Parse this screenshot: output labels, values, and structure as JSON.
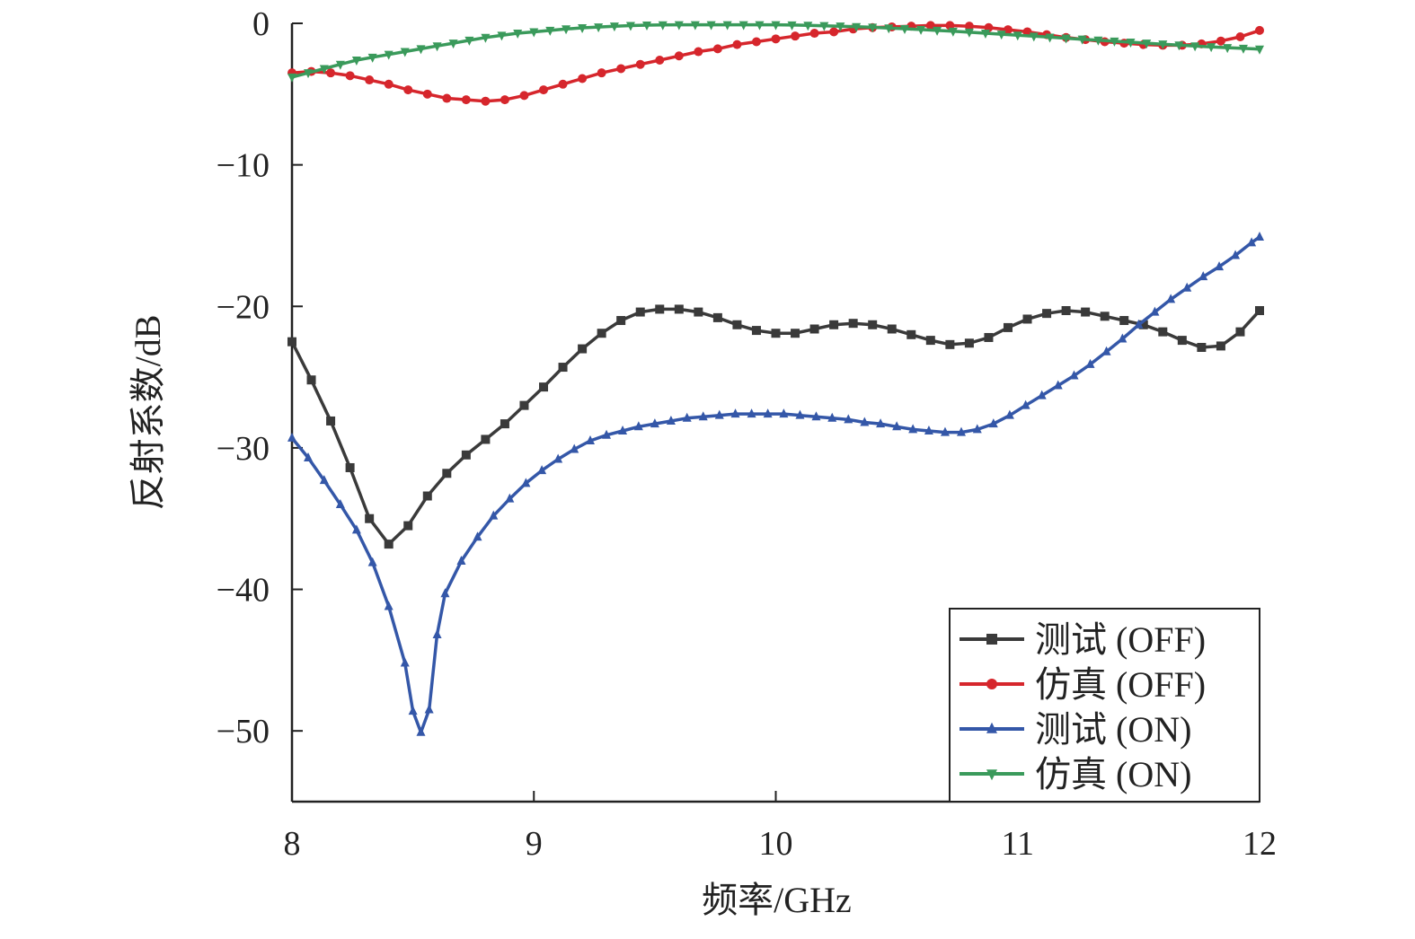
{
  "chart_data": {
    "type": "line",
    "xlabel": "频率/GHz",
    "ylabel": "反射系数/dB",
    "xlim": [
      8,
      12
    ],
    "ylim": [
      -55,
      0
    ],
    "x_ticks": [
      8,
      9,
      10,
      11,
      12
    ],
    "y_ticks": [
      0,
      -10,
      -20,
      -30,
      -40,
      -50
    ],
    "x_tick_labels": [
      "8",
      "9",
      "10",
      "11",
      "12"
    ],
    "y_tick_labels": [
      "0",
      "−10",
      "−20",
      "−30",
      "−40",
      "−50"
    ],
    "grid": false,
    "legend_position": "bottom-right",
    "series": [
      {
        "name": "测试 (OFF)",
        "color": "#3a3a3a",
        "marker": "square",
        "x": [
          8.0,
          8.08,
          8.16,
          8.24,
          8.32,
          8.4,
          8.48,
          8.56,
          8.64,
          8.72,
          8.8,
          8.88,
          8.96,
          9.04,
          9.12,
          9.2,
          9.28,
          9.36,
          9.44,
          9.52,
          9.6,
          9.68,
          9.76,
          9.84,
          9.92,
          10.0,
          10.08,
          10.16,
          10.24,
          10.32,
          10.4,
          10.48,
          10.56,
          10.64,
          10.72,
          10.8,
          10.88,
          10.96,
          11.04,
          11.12,
          11.2,
          11.28,
          11.36,
          11.44,
          11.52,
          11.6,
          11.68,
          11.76,
          11.84,
          11.92,
          12.0
        ],
        "y": [
          -22.5,
          -25.2,
          -28.1,
          -31.4,
          -35.0,
          -36.8,
          -35.5,
          -33.4,
          -31.8,
          -30.5,
          -29.4,
          -28.3,
          -27.0,
          -25.7,
          -24.3,
          -23.0,
          -21.9,
          -21.0,
          -20.4,
          -20.2,
          -20.2,
          -20.4,
          -20.8,
          -21.3,
          -21.7,
          -21.9,
          -21.9,
          -21.6,
          -21.3,
          -21.2,
          -21.3,
          -21.6,
          -22.0,
          -22.4,
          -22.7,
          -22.6,
          -22.2,
          -21.5,
          -20.9,
          -20.5,
          -20.3,
          -20.4,
          -20.7,
          -21.0,
          -21.3,
          -21.8,
          -22.4,
          -22.9,
          -22.8,
          -21.8,
          -20.3
        ]
      },
      {
        "name": "仿真 (OFF)",
        "color": "#d6262c",
        "marker": "circle",
        "x": [
          8.0,
          8.08,
          8.16,
          8.24,
          8.32,
          8.4,
          8.48,
          8.56,
          8.64,
          8.72,
          8.8,
          8.88,
          8.96,
          9.04,
          9.12,
          9.2,
          9.28,
          9.36,
          9.44,
          9.52,
          9.6,
          9.68,
          9.76,
          9.84,
          9.92,
          10.0,
          10.08,
          10.16,
          10.24,
          10.32,
          10.4,
          10.48,
          10.56,
          10.64,
          10.72,
          10.8,
          10.88,
          10.96,
          11.04,
          11.12,
          11.2,
          11.28,
          11.36,
          11.44,
          11.52,
          11.6,
          11.68,
          11.76,
          11.84,
          11.92,
          12.0
        ],
        "y": [
          -3.5,
          -3.4,
          -3.5,
          -3.7,
          -4.0,
          -4.3,
          -4.7,
          -5.0,
          -5.3,
          -5.4,
          -5.5,
          -5.4,
          -5.1,
          -4.7,
          -4.3,
          -3.9,
          -3.5,
          -3.2,
          -2.9,
          -2.6,
          -2.3,
          -2.0,
          -1.8,
          -1.5,
          -1.3,
          -1.1,
          -0.9,
          -0.7,
          -0.6,
          -0.4,
          -0.3,
          -0.25,
          -0.2,
          -0.15,
          -0.15,
          -0.2,
          -0.3,
          -0.45,
          -0.6,
          -0.8,
          -1.0,
          -1.15,
          -1.3,
          -1.4,
          -1.5,
          -1.55,
          -1.55,
          -1.45,
          -1.25,
          -0.95,
          -0.5
        ]
      },
      {
        "name": "测试 (ON)",
        "color": "#3457a8",
        "marker": "triangle-up",
        "x": [
          8.0,
          8.067,
          8.133,
          8.2,
          8.267,
          8.333,
          8.4,
          8.467,
          8.5,
          8.533,
          8.567,
          8.6,
          8.633,
          8.7,
          8.767,
          8.833,
          8.9,
          8.967,
          9.033,
          9.1,
          9.167,
          9.233,
          9.3,
          9.367,
          9.433,
          9.5,
          9.567,
          9.633,
          9.7,
          9.767,
          9.833,
          9.9,
          9.967,
          10.033,
          10.1,
          10.167,
          10.233,
          10.3,
          10.367,
          10.433,
          10.5,
          10.567,
          10.633,
          10.7,
          10.767,
          10.833,
          10.9,
          10.967,
          11.033,
          11.1,
          11.167,
          11.233,
          11.3,
          11.367,
          11.433,
          11.5,
          11.567,
          11.633,
          11.7,
          11.767,
          11.833,
          11.9,
          11.967,
          12.0
        ],
        "y": [
          -29.3,
          -30.7,
          -32.3,
          -34.0,
          -35.8,
          -38.1,
          -41.2,
          -45.2,
          -48.6,
          -50.1,
          -48.5,
          -43.2,
          -40.3,
          -38.0,
          -36.3,
          -34.8,
          -33.6,
          -32.5,
          -31.6,
          -30.8,
          -30.1,
          -29.5,
          -29.1,
          -28.8,
          -28.5,
          -28.3,
          -28.1,
          -27.9,
          -27.8,
          -27.7,
          -27.6,
          -27.6,
          -27.6,
          -27.6,
          -27.7,
          -27.8,
          -27.9,
          -28.0,
          -28.2,
          -28.3,
          -28.5,
          -28.7,
          -28.8,
          -28.9,
          -28.9,
          -28.7,
          -28.3,
          -27.7,
          -27.0,
          -26.3,
          -25.6,
          -24.9,
          -24.1,
          -23.2,
          -22.3,
          -21.3,
          -20.4,
          -19.5,
          -18.7,
          -17.9,
          -17.2,
          -16.4,
          -15.5,
          -15.1
        ]
      },
      {
        "name": "仿真 (ON)",
        "color": "#3a9a5b",
        "marker": "triangle-down",
        "x": [
          8.0,
          8.067,
          8.133,
          8.2,
          8.267,
          8.333,
          8.4,
          8.467,
          8.533,
          8.6,
          8.667,
          8.733,
          8.8,
          8.867,
          8.933,
          9.0,
          9.067,
          9.133,
          9.2,
          9.267,
          9.333,
          9.4,
          9.467,
          9.533,
          9.6,
          9.667,
          9.733,
          9.8,
          9.867,
          9.933,
          10.0,
          10.067,
          10.133,
          10.2,
          10.267,
          10.333,
          10.4,
          10.467,
          10.533,
          10.6,
          10.667,
          10.733,
          10.8,
          10.867,
          10.933,
          11.0,
          11.067,
          11.133,
          11.2,
          11.267,
          11.333,
          11.4,
          11.467,
          11.533,
          11.6,
          11.667,
          11.733,
          11.8,
          11.867,
          11.933,
          12.0
        ],
        "y": [
          -3.8,
          -3.5,
          -3.2,
          -2.9,
          -2.6,
          -2.4,
          -2.2,
          -2.0,
          -1.8,
          -1.6,
          -1.4,
          -1.2,
          -1.0,
          -0.85,
          -0.7,
          -0.6,
          -0.5,
          -0.4,
          -0.32,
          -0.26,
          -0.2,
          -0.16,
          -0.13,
          -0.11,
          -0.1,
          -0.1,
          -0.1,
          -0.1,
          -0.1,
          -0.1,
          -0.1,
          -0.12,
          -0.14,
          -0.17,
          -0.2,
          -0.24,
          -0.28,
          -0.33,
          -0.38,
          -0.44,
          -0.5,
          -0.56,
          -0.63,
          -0.7,
          -0.77,
          -0.84,
          -0.91,
          -0.98,
          -1.05,
          -1.12,
          -1.19,
          -1.26,
          -1.33,
          -1.4,
          -1.47,
          -1.54,
          -1.6,
          -1.66,
          -1.72,
          -1.77,
          -1.82
        ]
      }
    ]
  }
}
